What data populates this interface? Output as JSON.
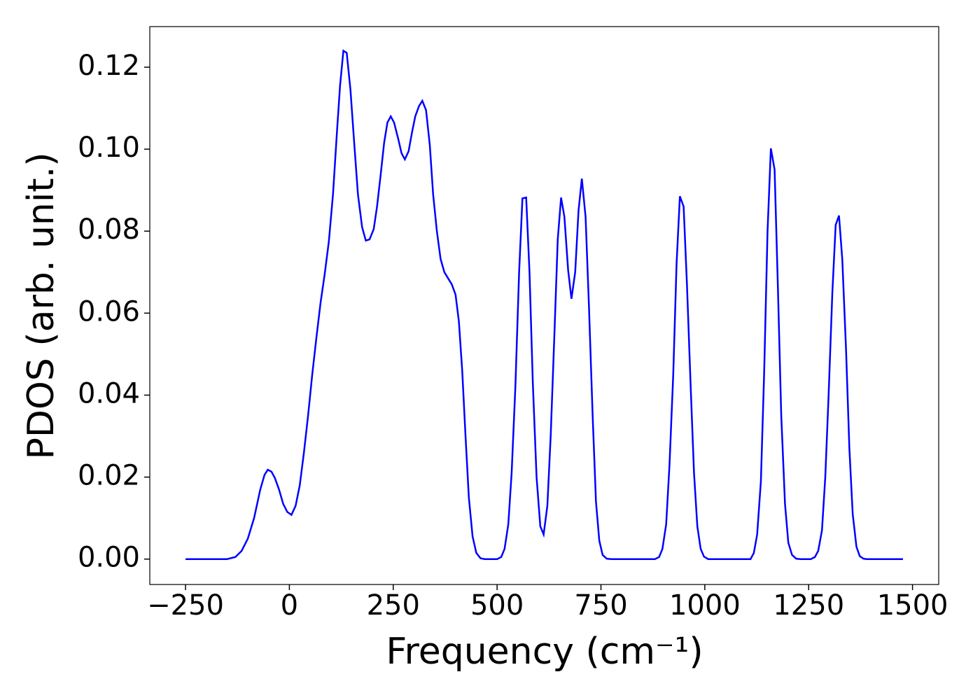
{
  "chart_data": {
    "type": "line",
    "x_label": "Frequency (cm⁻¹)",
    "y_label": "PDOS (arb. unit.)",
    "xlim": [
      -336,
      1563
    ],
    "ylim": [
      -0.0062,
      0.1299
    ],
    "xticks": [
      {
        "value": -250,
        "label": "−250"
      },
      0,
      250,
      500,
      750,
      1000,
      1250,
      1500
    ],
    "yticks": [
      {
        "value": 0,
        "label": "0.00"
      },
      {
        "value": 0.02,
        "label": "0.02"
      },
      {
        "value": 0.04,
        "label": "0.04"
      },
      {
        "value": 0.06,
        "label": "0.06"
      },
      {
        "value": 0.08,
        "label": "0.08"
      },
      {
        "value": 0.1,
        "label": "0.10"
      },
      {
        "value": 0.12,
        "label": "0.12"
      }
    ],
    "x": [
      -250,
      -150,
      -130,
      -115,
      -100,
      -85,
      -70,
      -60,
      -52,
      -43,
      -35,
      -25,
      -15,
      -5,
      5,
      15,
      25,
      35,
      45,
      55,
      65,
      75,
      85,
      95,
      105,
      115,
      122,
      130,
      138,
      147,
      155,
      165,
      175,
      184,
      193,
      203,
      211,
      220,
      228,
      236,
      244,
      252,
      262,
      270,
      278,
      287,
      295,
      303,
      312,
      320,
      329,
      338,
      346,
      355,
      364,
      373,
      382,
      391,
      400,
      408,
      416,
      424,
      432,
      441,
      450,
      460,
      470,
      500,
      510,
      518,
      527,
      535,
      544,
      553,
      561,
      570,
      578,
      586,
      595,
      604,
      612,
      621,
      629,
      638,
      646,
      654,
      662,
      671,
      679,
      688,
      696,
      704,
      713,
      721,
      730,
      738,
      746,
      754,
      764,
      775,
      880,
      890,
      898,
      907,
      915,
      924,
      932,
      940,
      949,
      957,
      966,
      974,
      982,
      990,
      998,
      1008,
      1110,
      1118,
      1126,
      1135,
      1143,
      1151,
      1159,
      1168,
      1176,
      1184,
      1193,
      1201,
      1210,
      1220,
      1230,
      1255,
      1265,
      1273,
      1282,
      1290,
      1298,
      1307,
      1315,
      1323,
      1331,
      1340,
      1348,
      1356,
      1365,
      1373,
      1382,
      1390,
      1477
    ],
    "series": [
      {
        "color": "#0000ff",
        "values": [
          0,
          0,
          0.0005,
          0.002,
          0.005,
          0.01,
          0.017,
          0.0205,
          0.0218,
          0.0213,
          0.0198,
          0.017,
          0.0135,
          0.0115,
          0.0108,
          0.013,
          0.018,
          0.026,
          0.035,
          0.045,
          0.054,
          0.0625,
          0.0695,
          0.0775,
          0.089,
          0.105,
          0.1155,
          0.124,
          0.1235,
          0.1145,
          0.103,
          0.089,
          0.081,
          0.0777,
          0.078,
          0.0805,
          0.086,
          0.094,
          0.1015,
          0.1065,
          0.108,
          0.1065,
          0.1025,
          0.099,
          0.0975,
          0.0995,
          0.104,
          0.108,
          0.1105,
          0.1118,
          0.1095,
          0.101,
          0.089,
          0.08,
          0.0732,
          0.07,
          0.0685,
          0.067,
          0.0645,
          0.058,
          0.046,
          0.03,
          0.015,
          0.0055,
          0.0015,
          0.0002,
          0,
          0,
          0.0005,
          0.0025,
          0.0085,
          0.021,
          0.042,
          0.07,
          0.088,
          0.0882,
          0.07,
          0.043,
          0.02,
          0.008,
          0.006,
          0.013,
          0.03,
          0.055,
          0.078,
          0.0882,
          0.0835,
          0.0705,
          0.0635,
          0.07,
          0.085,
          0.0928,
          0.0835,
          0.062,
          0.035,
          0.014,
          0.0045,
          0.001,
          0.0001,
          0,
          0,
          0.0005,
          0.0025,
          0.0085,
          0.023,
          0.045,
          0.072,
          0.0885,
          0.086,
          0.067,
          0.042,
          0.021,
          0.008,
          0.0025,
          0.0006,
          0,
          0,
          0.0015,
          0.006,
          0.019,
          0.046,
          0.08,
          0.1002,
          0.095,
          0.066,
          0.035,
          0.0135,
          0.004,
          0.001,
          0.0001,
          0,
          0,
          0.0005,
          0.002,
          0.007,
          0.02,
          0.04,
          0.065,
          0.0815,
          0.0838,
          0.073,
          0.051,
          0.027,
          0.011,
          0.003,
          0.0007,
          0.0001,
          0,
          0
        ]
      }
    ]
  }
}
